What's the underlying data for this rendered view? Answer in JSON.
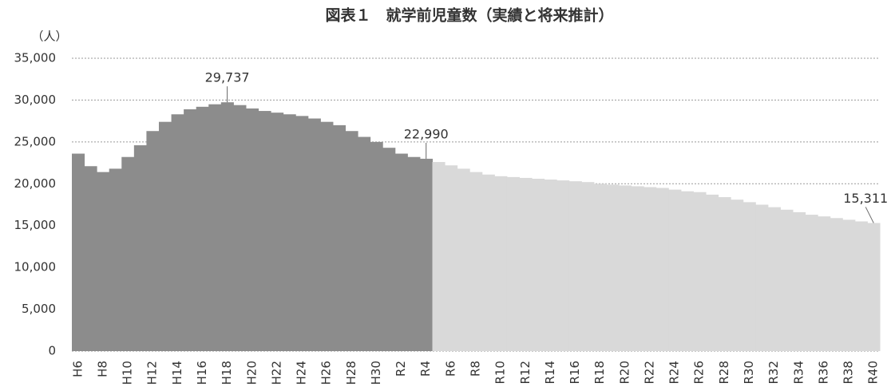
{
  "chart_data": {
    "type": "bar",
    "title": "図表１　就学前児童数（実績と将来推計）",
    "y_label": "（人）",
    "categories": [
      "H6",
      null,
      "H8",
      null,
      "H10",
      null,
      "H12",
      null,
      "H14",
      null,
      "H16",
      null,
      "H18",
      null,
      "H20",
      null,
      "H22",
      null,
      "H24",
      null,
      "H26",
      null,
      "H28",
      null,
      "H30",
      null,
      "R2",
      null,
      "R4",
      null,
      "R6",
      null,
      "R8",
      null,
      "R10",
      null,
      "R12",
      null,
      "R14",
      null,
      "R16",
      null,
      "R18",
      null,
      "R20",
      null,
      "R22",
      null,
      "R24",
      null,
      "R26",
      null,
      "R28",
      null,
      "R30",
      null,
      "R32",
      null,
      "R34",
      null,
      "R36",
      null,
      "R38",
      null,
      "R40"
    ],
    "series": [
      {
        "color": "#8c8c8c",
        "values": [
          23600,
          22100,
          21400,
          21800,
          23200,
          24600,
          26300,
          27400,
          28300,
          28900,
          29200,
          29500,
          29737,
          29400,
          29000,
          28700,
          28500,
          28300,
          28100,
          27800,
          27400,
          27000,
          26300,
          25600,
          25000,
          24300,
          23600,
          23200,
          22990,
          null,
          null,
          null,
          null,
          null,
          null,
          null,
          null,
          null,
          null,
          null,
          null,
          null,
          null,
          null,
          null,
          null,
          null,
          null,
          null,
          null,
          null,
          null,
          null,
          null,
          null,
          null,
          null,
          null,
          null,
          null,
          null,
          null,
          null,
          null,
          null
        ],
        "value_labels": [
          null,
          null,
          null,
          null,
          null,
          null,
          null,
          null,
          null,
          null,
          null,
          null,
          "29,737",
          null,
          null,
          null,
          null,
          null,
          null,
          null,
          null,
          null,
          null,
          null,
          null,
          null,
          null,
          null,
          "22,990",
          null,
          null,
          null,
          null,
          null,
          null,
          null,
          null,
          null,
          null,
          null,
          null,
          null,
          null,
          null,
          null,
          null,
          null,
          null,
          null,
          null,
          null,
          null,
          null,
          null,
          null,
          null,
          null,
          null,
          null,
          null,
          null,
          null,
          null,
          null,
          null
        ]
      },
      {
        "color": "#d9d9d9",
        "values": [
          null,
          null,
          null,
          null,
          null,
          null,
          null,
          null,
          null,
          null,
          null,
          null,
          null,
          null,
          null,
          null,
          null,
          null,
          null,
          null,
          null,
          null,
          null,
          null,
          null,
          null,
          null,
          null,
          null,
          22600,
          22200,
          21800,
          21400,
          21100,
          20900,
          20800,
          20700,
          20600,
          20500,
          20400,
          20300,
          20200,
          20000,
          19900,
          19800,
          19700,
          19600,
          19500,
          19300,
          19100,
          19000,
          18700,
          18400,
          18100,
          17800,
          17500,
          17200,
          16900,
          16600,
          16300,
          16100,
          15900,
          15700,
          15500,
          15311
        ],
        "value_labels": [
          null,
          null,
          null,
          null,
          null,
          null,
          null,
          null,
          null,
          null,
          null,
          null,
          null,
          null,
          null,
          null,
          null,
          null,
          null,
          null,
          null,
          null,
          null,
          null,
          null,
          null,
          null,
          null,
          null,
          null,
          null,
          null,
          null,
          null,
          null,
          null,
          null,
          null,
          null,
          null,
          null,
          null,
          null,
          null,
          null,
          null,
          null,
          null,
          null,
          null,
          null,
          null,
          null,
          null,
          null,
          null,
          null,
          null,
          null,
          null,
          null,
          null,
          null,
          null,
          "15,311"
        ]
      }
    ],
    "ylim": [
      0,
      35000
    ],
    "yticks": [
      0,
      {
        "value": 5000,
        "label": "5,000"
      },
      {
        "value": 10000,
        "label": "10,000"
      },
      {
        "value": 15000,
        "label": "15,000"
      },
      {
        "value": 20000,
        "label": "20,000"
      },
      {
        "value": 25000,
        "label": "25,000"
      },
      {
        "value": 30000,
        "label": "30,000"
      },
      {
        "value": 35000,
        "label": "35,000"
      }
    ],
    "grid": true
  }
}
